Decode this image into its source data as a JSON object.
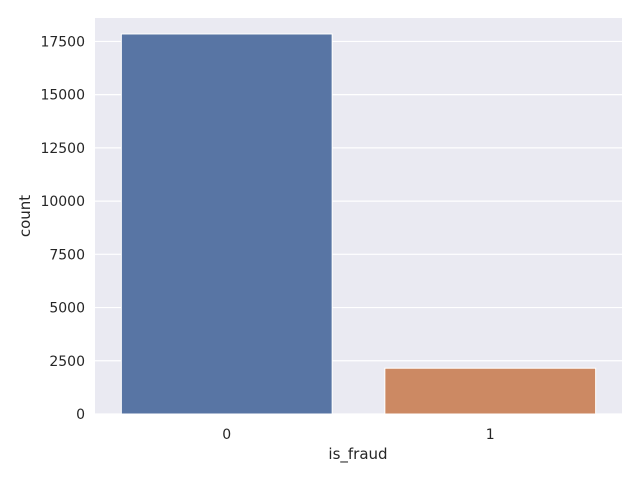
{
  "chart_data": {
    "type": "bar",
    "categories": [
      "0",
      "1"
    ],
    "values": [
      17850,
      2150
    ],
    "xlabel": "is_fraud",
    "ylabel": "count",
    "ylim": [
      0,
      18600
    ],
    "yticks": [
      0,
      2500,
      5000,
      7500,
      10000,
      12500,
      15000,
      17500
    ],
    "grid": true,
    "colors": [
      "#5875a4",
      "#cc8963"
    ],
    "background": "#eaeaf2"
  }
}
